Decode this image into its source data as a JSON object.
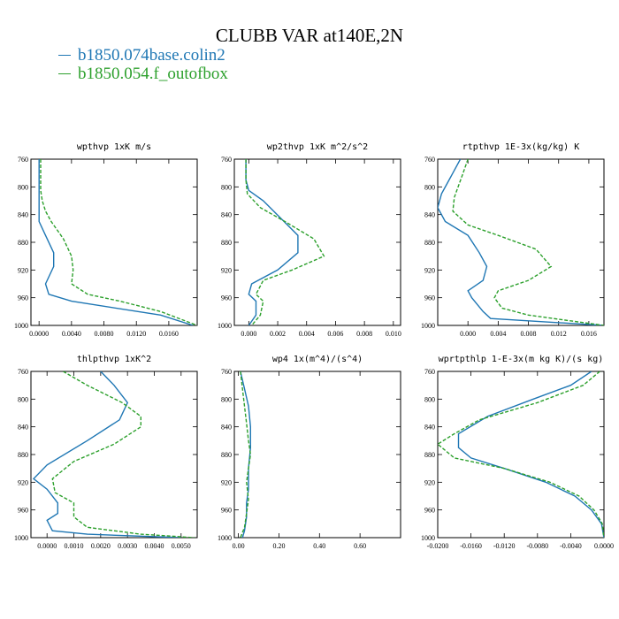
{
  "figure": {
    "title": "CLUBB VAR at140E,2N",
    "legend": [
      {
        "label": "b1850.074base.colin2",
        "color": "#1f77b4"
      },
      {
        "label": "b1850.054.f_outofbox",
        "color": "#2ca02c"
      }
    ]
  },
  "chart_data": [
    {
      "type": "line",
      "title": "wpthvp  1xK m/s",
      "xlim": [
        -0.001,
        0.0195
      ],
      "ylim": [
        760,
        1000
      ],
      "y_inverted": true,
      "xticks": [
        0.0,
        0.004,
        0.008,
        0.012,
        0.016
      ],
      "xtick_labels": [
        "0.0000",
        "0.0040",
        "0.0080",
        "0.0120",
        "0.0160"
      ],
      "yticks": [
        760,
        800,
        840,
        880,
        920,
        960,
        1000
      ],
      "series": [
        {
          "name": "b1850.074base.colin2",
          "x": [
            0.0,
            0.0,
            0.0,
            0.0,
            0.0,
            0.0,
            0.0,
            0.0008,
            0.0018,
            0.0018,
            0.0008,
            0.0012,
            0.004,
            0.015,
            0.019
          ],
          "y": [
            760,
            775,
            790,
            805,
            815,
            830,
            850,
            870,
            895,
            915,
            940,
            955,
            965,
            985,
            1000
          ]
        },
        {
          "name": "b1850.054.f_outofbox",
          "x": [
            0.0002,
            0.0002,
            0.0002,
            0.0002,
            0.0004,
            0.0008,
            0.0015,
            0.003,
            0.004,
            0.0042,
            0.004,
            0.006,
            0.01,
            0.015,
            0.0195
          ],
          "y": [
            760,
            775,
            790,
            805,
            820,
            835,
            850,
            875,
            900,
            920,
            940,
            955,
            965,
            980,
            1000
          ]
        }
      ]
    },
    {
      "type": "line",
      "title": "wp2thvp  1xK m^2/s^2",
      "xlim": [
        -0.001,
        0.0105
      ],
      "ylim": [
        760,
        1000
      ],
      "y_inverted": true,
      "xticks": [
        0.0,
        0.002,
        0.004,
        0.006,
        0.008,
        0.01
      ],
      "xtick_labels": [
        "0.000",
        "0.002",
        "0.004",
        "0.006",
        "0.008",
        "0.010"
      ],
      "yticks": [
        760,
        800,
        840,
        880,
        920,
        960,
        1000
      ],
      "series": [
        {
          "name": "b1850.074base.colin2",
          "x": [
            -0.0002,
            -0.0002,
            0.0,
            0.001,
            0.0022,
            0.0034,
            0.0034,
            0.002,
            0.0002,
            0.0,
            0.0005,
            0.0005,
            0.0
          ],
          "y": [
            760,
            790,
            805,
            820,
            845,
            870,
            895,
            920,
            940,
            955,
            965,
            985,
            1000
          ]
        },
        {
          "name": "b1850.054.f_outofbox",
          "x": [
            -0.0002,
            -0.0002,
            -0.0001,
            0.0008,
            0.0025,
            0.0045,
            0.0052,
            0.003,
            0.001,
            0.0005,
            0.001,
            0.0008,
            0.0002
          ],
          "y": [
            760,
            790,
            810,
            830,
            850,
            875,
            900,
            920,
            935,
            955,
            965,
            985,
            1000
          ]
        }
      ]
    },
    {
      "type": "line",
      "title": "rtpthvp  1E-3x(kg/kg) K",
      "xlim": [
        -0.004,
        0.018
      ],
      "ylim": [
        760,
        1000
      ],
      "y_inverted": true,
      "xticks": [
        0.0,
        0.004,
        0.008,
        0.012,
        0.016
      ],
      "xtick_labels": [
        "0.000",
        "0.004",
        "0.008",
        "0.012",
        "0.016"
      ],
      "yticks": [
        760,
        800,
        840,
        880,
        920,
        960,
        1000
      ],
      "series": [
        {
          "name": "b1850.074base.colin2",
          "x": [
            -0.001,
            -0.002,
            -0.0035,
            -0.004,
            -0.003,
            0.0,
            0.0015,
            0.0025,
            0.002,
            0.0,
            0.0005,
            0.002,
            0.003,
            0.018
          ],
          "y": [
            760,
            780,
            810,
            830,
            850,
            870,
            895,
            915,
            935,
            950,
            960,
            980,
            990,
            1000
          ]
        },
        {
          "name": "b1850.054.f_outofbox",
          "x": [
            0.0,
            -0.0008,
            -0.0018,
            -0.002,
            0.0,
            0.004,
            0.009,
            0.011,
            0.008,
            0.004,
            0.0035,
            0.0045,
            0.008,
            0.018
          ],
          "y": [
            760,
            785,
            815,
            835,
            855,
            870,
            890,
            915,
            935,
            950,
            960,
            975,
            985,
            1000
          ]
        }
      ]
    },
    {
      "type": "line",
      "title": "thlpthvp  1xK^2",
      "xlim": [
        -0.0006,
        0.0056
      ],
      "ylim": [
        760,
        1000
      ],
      "y_inverted": true,
      "xticks": [
        0.0,
        0.001,
        0.002,
        0.003,
        0.004,
        0.005
      ],
      "xtick_labels": [
        "0.0000",
        "0.0010",
        "0.0020",
        "0.0030",
        "0.0040",
        "0.0050"
      ],
      "yticks": [
        760,
        800,
        840,
        880,
        920,
        960,
        1000
      ],
      "series": [
        {
          "name": "b1850.074base.colin2",
          "x": [
            0.002,
            0.0025,
            0.003,
            0.0027,
            0.0015,
            0.0,
            -0.0005,
            0.0,
            0.0004,
            0.0004,
            0.0,
            0.0002,
            0.0015,
            0.005
          ],
          "y": [
            760,
            780,
            805,
            830,
            860,
            895,
            915,
            930,
            950,
            965,
            975,
            990,
            995,
            1000
          ]
        },
        {
          "name": "b1850.054.f_outofbox",
          "x": [
            0.0006,
            0.0015,
            0.0028,
            0.0035,
            0.0035,
            0.0025,
            0.001,
            0.0002,
            0.0003,
            0.001,
            0.001,
            0.0015,
            0.0035,
            0.0055
          ],
          "y": [
            760,
            780,
            805,
            825,
            840,
            865,
            890,
            915,
            935,
            950,
            970,
            985,
            995,
            1000
          ]
        }
      ]
    },
    {
      "type": "line",
      "title": "wp4  1x(m^4)/(s^4)",
      "xlim": [
        -0.02,
        0.8
      ],
      "ylim": [
        760,
        1000
      ],
      "y_inverted": true,
      "xticks": [
        0.0,
        0.2,
        0.4,
        0.6
      ],
      "xtick_labels": [
        "0.00",
        "0.20",
        "0.40",
        "0.60"
      ],
      "yticks": [
        760,
        800,
        840,
        880,
        920,
        960,
        1000
      ],
      "series": [
        {
          "name": "b1850.074base.colin2",
          "x": [
            0.01,
            0.03,
            0.05,
            0.06,
            0.06,
            0.05,
            0.05,
            0.04,
            0.04,
            0.03,
            0.02
          ],
          "y": [
            760,
            785,
            810,
            840,
            870,
            900,
            930,
            950,
            970,
            990,
            1000
          ]
        },
        {
          "name": "b1850.054.f_outofbox",
          "x": [
            0.01,
            0.02,
            0.03,
            0.04,
            0.05,
            0.06,
            0.05,
            0.04,
            0.05,
            0.04,
            0.03,
            0.01
          ],
          "y": [
            760,
            785,
            810,
            835,
            860,
            880,
            900,
            920,
            945,
            965,
            985,
            1000
          ]
        }
      ]
    },
    {
      "type": "line",
      "title": "wprtpthlp  1-E-3x(m kg K)/(s kg)",
      "xlim": [
        -0.02,
        0.0
      ],
      "ylim": [
        760,
        1000
      ],
      "y_inverted": true,
      "xticks": [
        -0.02,
        -0.016,
        -0.012,
        -0.008,
        -0.004,
        0.0
      ],
      "xtick_labels": [
        "-0.0200",
        "-0.0160",
        "-0.0120",
        "-0.0080",
        "-0.0040",
        "0.0000"
      ],
      "yticks": [
        760,
        800,
        840,
        880,
        920,
        960,
        1000
      ],
      "series": [
        {
          "name": "b1850.074base.colin2",
          "x": [
            -0.0015,
            -0.004,
            -0.0085,
            -0.014,
            -0.0175,
            -0.0175,
            -0.016,
            -0.012,
            -0.007,
            -0.0035,
            -0.0015,
            -0.0003,
            0.0
          ],
          "y": [
            760,
            780,
            800,
            825,
            850,
            870,
            885,
            900,
            920,
            940,
            960,
            980,
            1000
          ]
        },
        {
          "name": "b1850.054.f_outofbox",
          "x": [
            -0.0005,
            -0.0025,
            -0.008,
            -0.015,
            -0.018,
            -0.02,
            -0.018,
            -0.012,
            -0.0065,
            -0.003,
            -0.0012,
            -0.0002,
            0.0
          ],
          "y": [
            760,
            780,
            805,
            830,
            850,
            865,
            885,
            900,
            920,
            940,
            960,
            980,
            1000
          ]
        }
      ]
    }
  ]
}
